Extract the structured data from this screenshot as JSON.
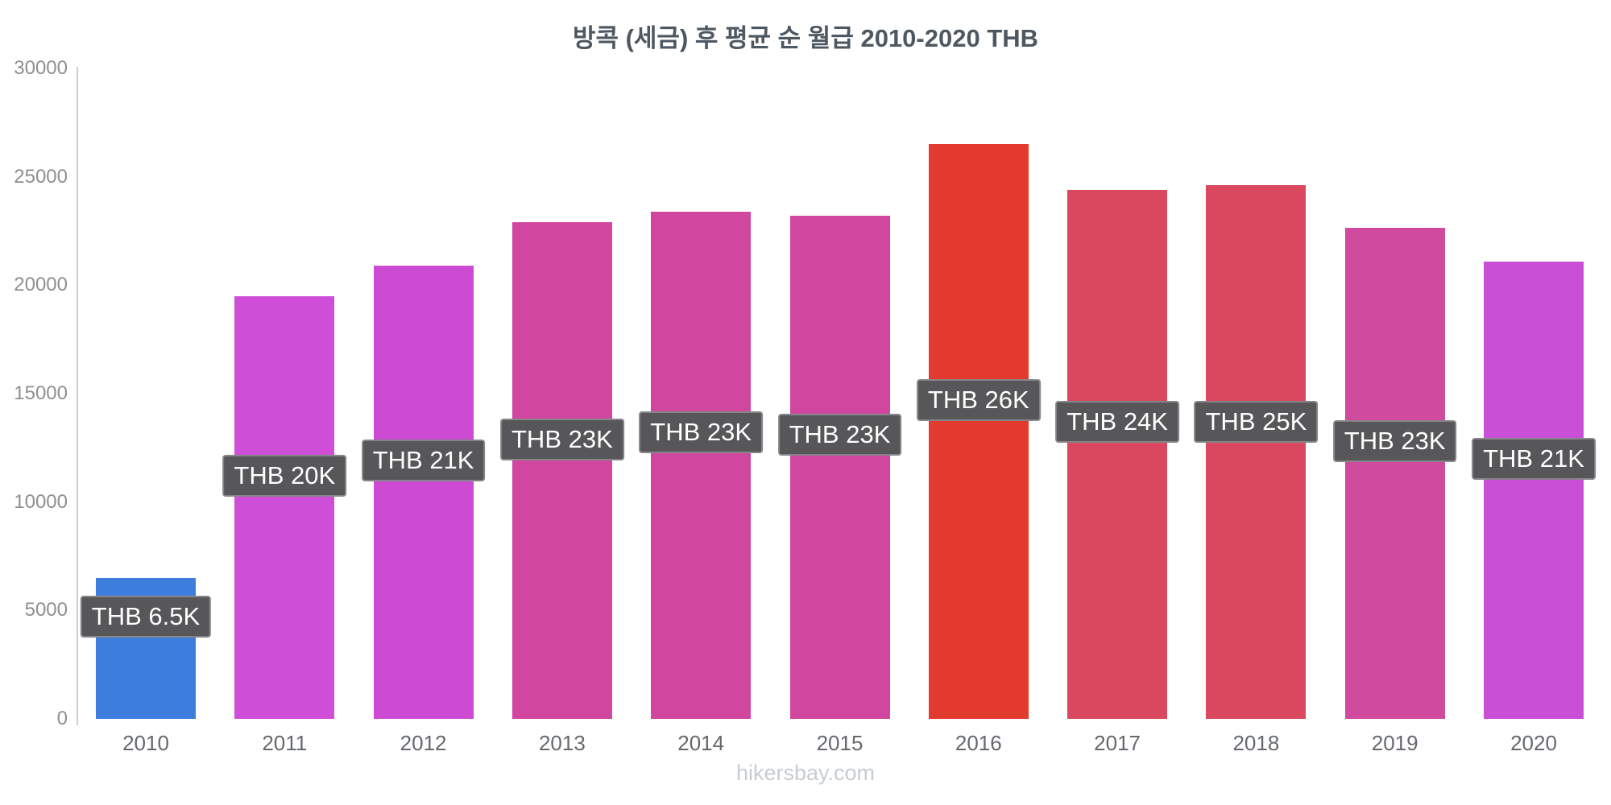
{
  "title": "방콕 (세금) 후 평균 순 월급 2010-2020 THB",
  "watermark": "hikersbay.com",
  "chart_data": {
    "type": "bar",
    "title": "방콕 (세금) 후 평균 순 월급 2010-2020 THB",
    "currency": "THB",
    "categories": [
      "2010",
      "2011",
      "2012",
      "2013",
      "2014",
      "2015",
      "2016",
      "2017",
      "2018",
      "2019",
      "2020"
    ],
    "values": [
      6500,
      19500,
      20900,
      22900,
      23400,
      23200,
      26500,
      24400,
      24600,
      22650,
      21100
    ],
    "bar_labels": [
      "THB 6.5K",
      "THB 20K",
      "THB 21K",
      "THB 23K",
      "THB 23K",
      "THB 23K",
      "THB 26K",
      "THB 24K",
      "THB 25K",
      "THB 23K",
      "THB 21K"
    ],
    "bar_colors": [
      "#3d7ddc",
      "#cf4ed8",
      "#cd4bd2",
      "#d1479f",
      "#d1479f",
      "#d1479f",
      "#e23a2e",
      "#d9485f",
      "#d9485f",
      "#d04a9e",
      "#c94fd6"
    ],
    "label_center_values": [
      4700,
      11200,
      11900,
      12900,
      13200,
      13100,
      14700,
      13700,
      13700,
      12800,
      12000
    ],
    "ylim": [
      0,
      30000
    ],
    "yticks": [
      0,
      5000,
      10000,
      15000,
      20000,
      25000,
      30000
    ],
    "xlabel": "",
    "ylabel": "",
    "grid": false,
    "legend": false
  }
}
